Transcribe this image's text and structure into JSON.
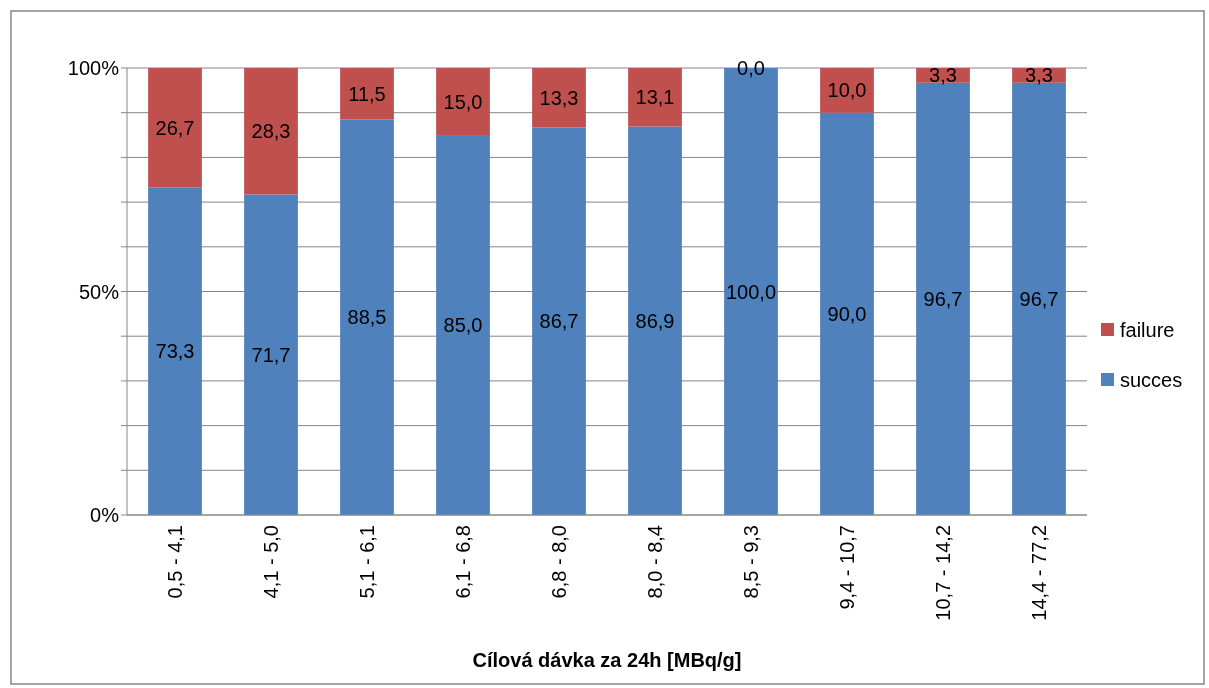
{
  "chart_data": {
    "type": "bar",
    "stacked": true,
    "xlabel": "Cílová dávka za 24h [MBq/g]",
    "categories": [
      "0,5 - 4,1",
      "4,1 - 5,0",
      "5,1 - 6,1",
      "6,1 - 6,8",
      "6,8 - 8,0",
      "8,0 - 8,4",
      "8,5 - 9,3",
      "9,4 - 10,7",
      "10,7 - 14,2",
      "14,4 - 77,2"
    ],
    "series": [
      {
        "name": "succes",
        "color": "#4f81bd",
        "values": [
          73.3,
          71.7,
          88.5,
          85.0,
          86.7,
          86.9,
          100.0,
          90.0,
          96.7,
          96.7
        ],
        "value_labels": [
          "73,3",
          "71,7",
          "88,5",
          "85,0",
          "86,7",
          "86,9",
          "100,0",
          "90,0",
          "96,7",
          "96,7"
        ]
      },
      {
        "name": "failure",
        "color": "#c0504d",
        "values": [
          26.7,
          28.3,
          11.5,
          15.0,
          13.3,
          13.1,
          0.0,
          10.0,
          3.3,
          3.3
        ],
        "value_labels": [
          "26,7",
          "28,3",
          "11,5",
          "15,0",
          "13,3",
          "13,1",
          "0,0",
          "10,0",
          "3,3",
          "3,3"
        ]
      }
    ],
    "ylim": [
      0,
      100
    ],
    "yticks": [
      {
        "value": 0,
        "label": "0%"
      },
      {
        "value": 10,
        "label": null
      },
      {
        "value": 20,
        "label": null
      },
      {
        "value": 30,
        "label": null
      },
      {
        "value": 40,
        "label": null
      },
      {
        "value": 50,
        "label": "50%"
      },
      {
        "value": 60,
        "label": null
      },
      {
        "value": 70,
        "label": null
      },
      {
        "value": 80,
        "label": null
      },
      {
        "value": 90,
        "label": null
      },
      {
        "value": 100,
        "label": "100%"
      }
    ],
    "grid": "y",
    "legend": "right"
  }
}
